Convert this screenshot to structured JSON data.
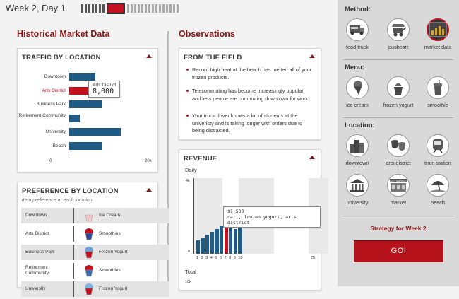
{
  "header": {
    "week_label": "Week 2, Day 1"
  },
  "sections": {
    "historical": "Historical Market Data",
    "observations": "Observations"
  },
  "traffic": {
    "title": "TRAFFIC BY LOCATION",
    "rows": [
      {
        "label": "Downtown",
        "value": 5500
      },
      {
        "label": "Arts District",
        "value": 8000
      },
      {
        "label": "Business Park",
        "value": 6800
      },
      {
        "label": "Retirement Community",
        "value": 2200
      },
      {
        "label": "University",
        "value": 10800
      },
      {
        "label": "Beach",
        "value": 6800
      }
    ],
    "axis_min": "0",
    "axis_max": "20k",
    "tooltip": {
      "label": "Arts District",
      "value": "8,000"
    }
  },
  "preference": {
    "title": "PREFERENCE BY LOCATION",
    "subtitle": "item preference at each location",
    "rows": [
      {
        "location": "Downtown",
        "item": "Ice Cream"
      },
      {
        "location": "Arts District",
        "item": "Smoothies"
      },
      {
        "location": "Business Park",
        "item": "Frozen Yogurt"
      },
      {
        "location": "Retirement Community",
        "item": "Smoothies"
      },
      {
        "location": "University",
        "item": "Frozen Yogurt"
      }
    ]
  },
  "field": {
    "title": "FROM THE FIELD",
    "items": [
      "Record high heat at the beach has melted all of your frozen products.",
      "Telecommuting has become increasingly popular and less people are commuting downtown for work.",
      "Your truck driver knows a lot of students at the univeristy and is taking longer with orders due to being distracted."
    ]
  },
  "revenue": {
    "title": "REVENUE",
    "daily_label": "Daily",
    "total_label": "Total",
    "y_max": "4k",
    "y_min": "0",
    "total_y": "10k",
    "x_labels": [
      "1",
      "2",
      "3",
      "4",
      "5",
      "6",
      "7",
      "8",
      "9",
      "10",
      "25"
    ],
    "tooltip": {
      "value": "$1,500",
      "detail": "cart, frozen yogurt, arts district"
    }
  },
  "chart_data": [
    {
      "type": "bar",
      "title": "TRAFFIC BY LOCATION",
      "categories": [
        "Downtown",
        "Arts District",
        "Business Park",
        "Retirement Community",
        "University",
        "Beach"
      ],
      "values": [
        5500,
        8000,
        6800,
        2200,
        10800,
        6800
      ],
      "xlim": [
        0,
        20000
      ],
      "highlight": "Arts District"
    },
    {
      "type": "bar",
      "title": "REVENUE",
      "subtitle": "Daily",
      "categories": [
        "1",
        "2",
        "3",
        "4",
        "5",
        "6",
        "7",
        "8",
        "9",
        "10"
      ],
      "values": [
        700,
        850,
        1000,
        1150,
        1300,
        1450,
        1500,
        1350,
        1300,
        1750
      ],
      "ylim": [
        0,
        4000
      ],
      "xlim": [
        1,
        25
      ],
      "highlight": "7"
    }
  ],
  "sidebar": {
    "method_heading": "Method:",
    "methods": [
      {
        "label": "food truck",
        "icon": "food-truck-icon"
      },
      {
        "label": "pushcart",
        "icon": "pushcart-icon"
      },
      {
        "label": "market data",
        "icon": "market-data-icon",
        "selected": true,
        "badge": "Data"
      }
    ],
    "menu_heading": "Menu:",
    "menu": [
      {
        "label": "ice cream",
        "icon": "ice-cream-icon"
      },
      {
        "label": "frozen yogurt",
        "icon": "frozen-yogurt-icon"
      },
      {
        "label": "smoothie",
        "icon": "smoothie-icon"
      }
    ],
    "location_heading": "Location:",
    "locations": [
      {
        "label": "downtown",
        "icon": "downtown-icon"
      },
      {
        "label": "arts district",
        "icon": "arts-district-icon"
      },
      {
        "label": "train station",
        "icon": "train-station-icon"
      },
      {
        "label": "university",
        "icon": "university-icon"
      },
      {
        "label": "market",
        "icon": "market-icon",
        "sign": "CITY MARKET"
      },
      {
        "label": "beach",
        "icon": "beach-icon"
      }
    ],
    "strategy_label": "Strategy for Week 2",
    "go_label": "GO!"
  },
  "colors": {
    "accent": "#c2121f",
    "bar": "#1f5b84",
    "heading": "#8b1616",
    "go": "#b5121b"
  }
}
